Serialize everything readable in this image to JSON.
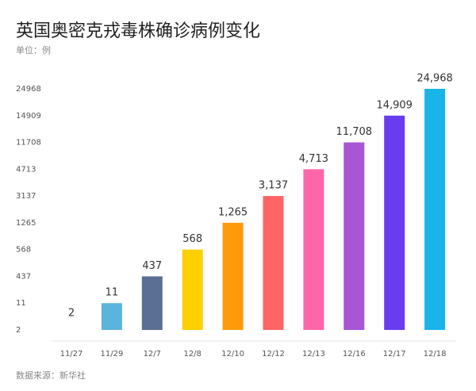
{
  "chart_data": {
    "type": "bar",
    "title": "英国奥密克戎毒株确诊病例变化",
    "subtitle": "单位：例",
    "source": "数据来源：新华社",
    "categories": [
      "11/27",
      "11/29",
      "12/7",
      "12/8",
      "12/10",
      "12/12",
      "12/13",
      "12/16",
      "12/17",
      "12/18"
    ],
    "values": [
      2,
      11,
      437,
      568,
      1265,
      3137,
      4713,
      11708,
      14909,
      24968
    ],
    "value_labels": [
      "2",
      "11",
      "437",
      "568",
      "1,265",
      "3,137",
      "4,713",
      "11,708",
      "14,909",
      "24,968"
    ],
    "colors": [
      "#5ab4dc",
      "#5ab4dc",
      "#5b6e94",
      "#ffd000",
      "#ff9a0a",
      "#ff6565",
      "#ff66aa",
      "#a855d6",
      "#6a3cf0",
      "#19b4e8"
    ],
    "ylim": [
      2,
      24968
    ],
    "yticks": [
      2,
      11,
      437,
      568,
      1265,
      3137,
      4713,
      11708,
      14909,
      24968
    ]
  }
}
